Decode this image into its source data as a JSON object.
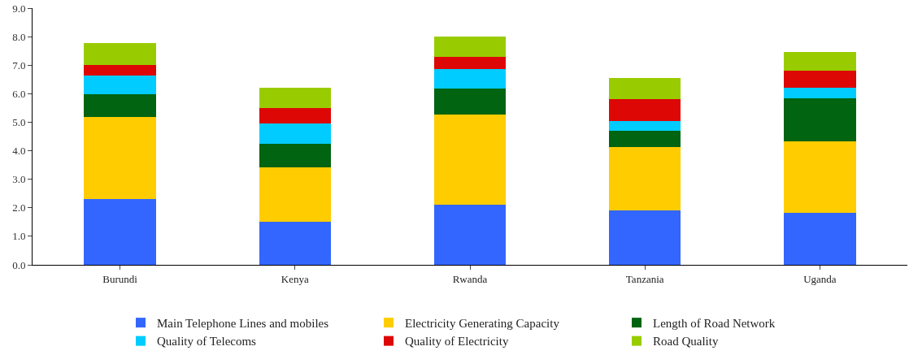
{
  "chart_data": {
    "type": "bar",
    "stacked": true,
    "categories": [
      "Burundi",
      "Kenya",
      "Rwanda",
      "Tanzania",
      "Uganda"
    ],
    "series": [
      {
        "name": "Main Telephone Lines and mobiles",
        "color": "#3366ff",
        "values": [
          2.31,
          1.5,
          2.1,
          1.9,
          1.82
        ]
      },
      {
        "name": "Electricity Generating Capacity",
        "color": "#ffcc00",
        "values": [
          2.88,
          1.93,
          3.17,
          2.22,
          2.51
        ]
      },
      {
        "name": "Length of Road Network",
        "color": "#006411",
        "values": [
          0.78,
          0.81,
          0.9,
          0.58,
          1.52
        ]
      },
      {
        "name": "Quality of Telecoms",
        "color": "#00ccff",
        "values": [
          0.66,
          0.71,
          0.7,
          0.33,
          0.37
        ]
      },
      {
        "name": "Quality of Electricity",
        "color": "#dd0806",
        "values": [
          0.37,
          0.56,
          0.41,
          0.77,
          0.58
        ]
      },
      {
        "name": "Road Quality",
        "color": "#99cc00",
        "values": [
          0.77,
          0.7,
          0.73,
          0.74,
          0.65
        ]
      }
    ],
    "ylim": [
      0,
      9
    ],
    "yticks": [
      {
        "value": 0,
        "label": "0.0"
      },
      {
        "value": 1,
        "label": "1.0"
      },
      {
        "value": 2,
        "label": "2.0"
      },
      {
        "value": 3,
        "label": "3.0"
      },
      {
        "value": 4,
        "label": "4.0"
      },
      {
        "value": 5,
        "label": "5.0"
      },
      {
        "value": 6,
        "label": "6.0"
      },
      {
        "value": 7,
        "label": "7.0"
      },
      {
        "value": 8,
        "label": "8.0"
      },
      {
        "value": 9,
        "label": "9.0"
      }
    ],
    "legend": "bottom"
  }
}
